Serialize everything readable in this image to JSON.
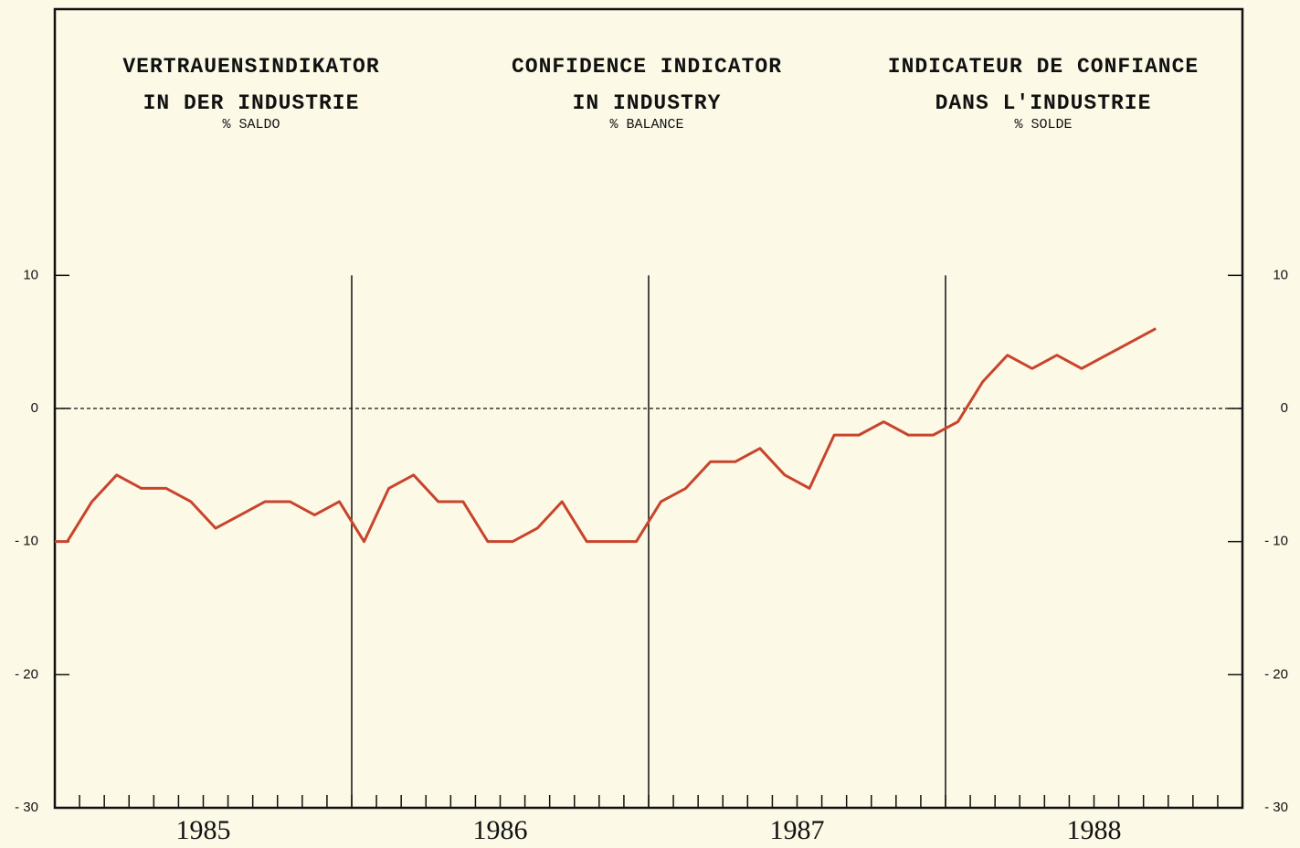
{
  "chart_data": {
    "type": "line",
    "titles": [
      {
        "lines": [
          "VERTRAUENSINDIKATOR",
          "IN DER INDUSTRIE"
        ],
        "unit": "% SALDO"
      },
      {
        "lines": [
          "CONFIDENCE INDICATOR",
          "IN INDUSTRY"
        ],
        "unit": "% BALANCE"
      },
      {
        "lines": [
          "INDICATEUR DE CONFIANCE",
          "DANS L'INDUSTRIE"
        ],
        "unit": "% SOLDE"
      }
    ],
    "x": [
      0,
      0.5,
      1.5,
      2.5,
      3.5,
      4.5,
      5.5,
      6.5,
      7.5,
      8.5,
      9.5,
      10.5,
      11.5,
      12.5,
      13.5,
      14.5,
      15.5,
      16.5,
      17.5,
      18.5,
      19.5,
      20.5,
      21.5,
      22.5,
      23.5,
      24.5,
      25.5,
      26.5,
      27.5,
      28.5,
      29.5,
      30.5,
      31.5,
      32.5,
      33.5,
      34.5,
      35.5,
      36.5,
      37.5,
      38.5,
      39.5,
      40.5,
      41.5,
      42.5,
      43.5,
      44.5
    ],
    "series": [
      {
        "name": "Confidence indicator",
        "color": "#c8442c",
        "values": [
          -10,
          -10,
          -7,
          -5,
          -6,
          -6,
          -7,
          -9,
          -8,
          -7,
          -7,
          -8,
          -7,
          -10,
          -6,
          -5,
          -7,
          -7,
          -10,
          -10,
          -9,
          -7,
          -10,
          -10,
          -10,
          -7,
          -6,
          -4,
          -4,
          -3,
          -5,
          -6,
          -2,
          -2,
          -1,
          -2,
          -2,
          -1,
          2,
          4,
          3,
          4,
          3,
          4,
          5,
          6
        ]
      }
    ],
    "xlim": [
      0,
      48
    ],
    "xticks": [
      {
        "value": 6,
        "label": "1985"
      },
      {
        "value": 18,
        "label": "1986"
      },
      {
        "value": 30,
        "label": "1987"
      },
      {
        "value": 42,
        "label": "1988"
      }
    ],
    "xminor": [
      1,
      2,
      3,
      4,
      5,
      6,
      7,
      8,
      9,
      10,
      11,
      12,
      13,
      14,
      15,
      16,
      17,
      18,
      19,
      20,
      21,
      22,
      23,
      24,
      25,
      26,
      27,
      28,
      29,
      30,
      31,
      32,
      33,
      34,
      35,
      36,
      37,
      38,
      39,
      40,
      41,
      42,
      43,
      44,
      45,
      46,
      47
    ],
    "dividers": [
      12,
      24,
      36
    ],
    "ylim": [
      -30,
      30
    ],
    "yticks": [
      {
        "value": 10,
        "label": "10"
      },
      {
        "value": 0,
        "label": "0"
      },
      {
        "value": -10,
        "label": "- 10"
      },
      {
        "value": -20,
        "label": "- 20"
      },
      {
        "value": -30,
        "label": "- 30"
      }
    ],
    "zero_line": 0
  }
}
